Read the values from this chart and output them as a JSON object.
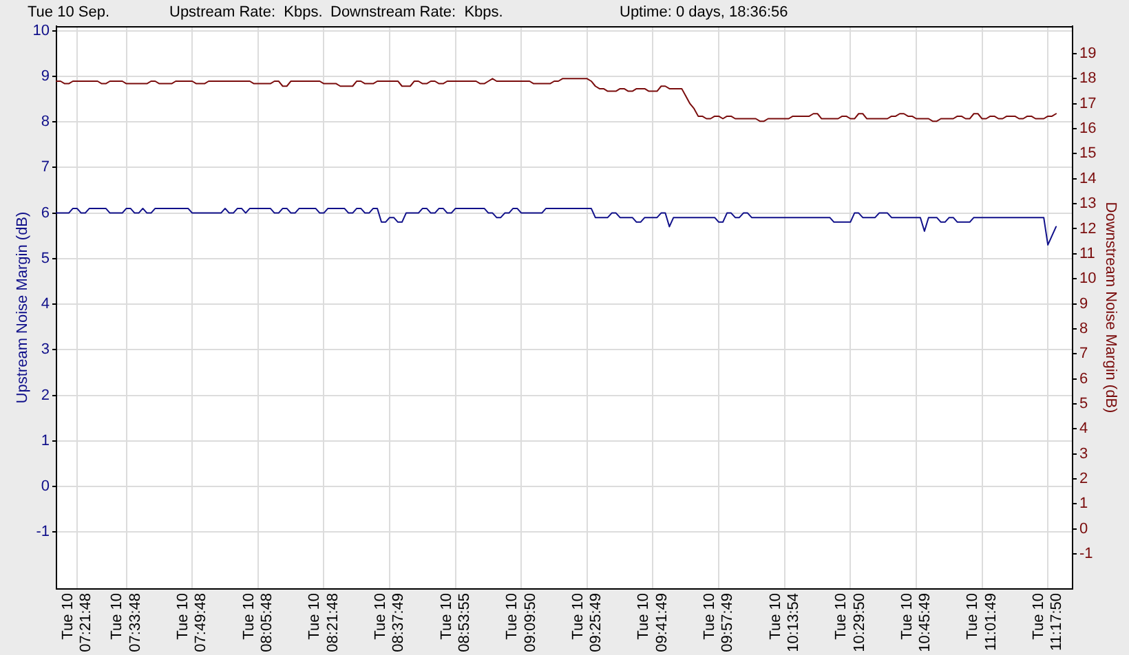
{
  "chart_data": {
    "type": "line",
    "title": "Tue 10 Sep.",
    "annotations": [
      "Upstream Rate:  Kbps.",
      "Downstream Rate:  Kbps.",
      "Uptime: 0 days, 18:36:56"
    ],
    "ylabel": "Upstream Noise Margin (dB)",
    "y2label": "Downstream Noise Margin (dB)",
    "categories": [
      null,
      null,
      null,
      null,
      null,
      "Tue 10\n07:21:48",
      null,
      null,
      null,
      null,
      null,
      null,
      null,
      null,
      null,
      null,
      null,
      "Tue 10\n07:33:48",
      null,
      null,
      null,
      null,
      null,
      null,
      null,
      null,
      null,
      null,
      null,
      null,
      null,
      null,
      null,
      "Tue 10\n07:49:48",
      null,
      null,
      null,
      null,
      null,
      null,
      null,
      null,
      null,
      null,
      null,
      null,
      null,
      null,
      null,
      "Tue 10\n08:05:48",
      null,
      null,
      null,
      null,
      null,
      null,
      null,
      null,
      null,
      null,
      null,
      null,
      null,
      null,
      null,
      "Tue 10\n08:21:48",
      null,
      null,
      null,
      null,
      null,
      null,
      null,
      null,
      null,
      null,
      null,
      null,
      null,
      null,
      null,
      "Tue 10\n08:37:49",
      null,
      null,
      null,
      null,
      null,
      null,
      null,
      null,
      null,
      null,
      null,
      null,
      null,
      null,
      null,
      "Tue 10\n08:53:55",
      null,
      null,
      null,
      null,
      null,
      null,
      null,
      null,
      null,
      null,
      null,
      null,
      null,
      null,
      null,
      "Tue 10\n09:09:50",
      null,
      null,
      null,
      null,
      null,
      null,
      null,
      null,
      null,
      null,
      null,
      null,
      null,
      null,
      null,
      "Tue 10\n09:25:49",
      null,
      null,
      null,
      null,
      null,
      null,
      null,
      null,
      null,
      null,
      null,
      null,
      null,
      null,
      null,
      "Tue 10\n09:41:49",
      null,
      null,
      null,
      null,
      null,
      null,
      null,
      null,
      null,
      null,
      null,
      null,
      null,
      null,
      null,
      "Tue 10\n09:57:49",
      null,
      null,
      null,
      null,
      null,
      null,
      null,
      null,
      null,
      null,
      null,
      null,
      null,
      null,
      null,
      "Tue 10\n10:13:54",
      null,
      null,
      null,
      null,
      null,
      null,
      null,
      null,
      null,
      null,
      null,
      null,
      null,
      null,
      null,
      "Tue 10\n10:29:50",
      null,
      null,
      null,
      null,
      null,
      null,
      null,
      null,
      null,
      null,
      null,
      null,
      null,
      null,
      null,
      "Tue 10\n10:45:49",
      null,
      null,
      null,
      null,
      null,
      null,
      null,
      null,
      null,
      null,
      null,
      null,
      null,
      null,
      null,
      "Tue 10\n11:01:49",
      null,
      null,
      null,
      null,
      null,
      null,
      null,
      null,
      null,
      null,
      null,
      null,
      null,
      null,
      null,
      "Tue 10\n11:17:50",
      null,
      null,
      null,
      null,
      null,
      null
    ],
    "ylim": [
      -2.25,
      10.1
    ],
    "yticks": [
      -1,
      0,
      1,
      2,
      3,
      4,
      5,
      6,
      7,
      8,
      9,
      10
    ],
    "y2lim": [
      -2.4,
      20.1
    ],
    "y2ticks": [
      -1,
      0,
      1,
      2,
      3,
      4,
      5,
      6,
      7,
      8,
      9,
      10,
      11,
      12,
      13,
      14,
      15,
      16,
      17,
      18,
      19
    ],
    "grid": true,
    "series": [
      {
        "color": "#10108a",
        "values": [
          6.0,
          6.0,
          6.0,
          6.0,
          6.1,
          6.1,
          6.0,
          6.0,
          6.1,
          6.1,
          6.1,
          6.1,
          6.1,
          6.0,
          6.0,
          6.0,
          6.0,
          6.1,
          6.1,
          6.0,
          6.0,
          6.1,
          6.0,
          6.0,
          6.1,
          6.1,
          6.1,
          6.1,
          6.1,
          6.1,
          6.1,
          6.1,
          6.1,
          6.0,
          6.0,
          6.0,
          6.0,
          6.0,
          6.0,
          6.0,
          6.0,
          6.1,
          6.0,
          6.0,
          6.1,
          6.1,
          6.0,
          6.1,
          6.1,
          6.1,
          6.1,
          6.1,
          6.1,
          6.0,
          6.0,
          6.1,
          6.1,
          6.0,
          6.0,
          6.1,
          6.1,
          6.1,
          6.1,
          6.1,
          6.0,
          6.0,
          6.1,
          6.1,
          6.1,
          6.1,
          6.1,
          6.0,
          6.0,
          6.1,
          6.1,
          6.0,
          6.0,
          6.1,
          6.1,
          5.8,
          5.8,
          5.9,
          5.9,
          5.8,
          5.8,
          6.0,
          6.0,
          6.0,
          6.0,
          6.1,
          6.1,
          6.0,
          6.0,
          6.1,
          6.1,
          6.0,
          6.0,
          6.1,
          6.1,
          6.1,
          6.1,
          6.1,
          6.1,
          6.1,
          6.1,
          6.0,
          6.0,
          5.9,
          5.9,
          6.0,
          6.0,
          6.1,
          6.1,
          6.0,
          6.0,
          6.0,
          6.0,
          6.0,
          6.0,
          6.1,
          6.1,
          6.1,
          6.1,
          6.1,
          6.1,
          6.1,
          6.1,
          6.1,
          6.1,
          6.1,
          6.1,
          5.9,
          5.9,
          5.9,
          5.9,
          6.0,
          6.0,
          5.9,
          5.9,
          5.9,
          5.9,
          5.8,
          5.8,
          5.9,
          5.9,
          5.9,
          5.9,
          6.0,
          6.0,
          5.7,
          5.9,
          5.9,
          5.9,
          5.9,
          5.9,
          5.9,
          5.9,
          5.9,
          5.9,
          5.9,
          5.9,
          5.8,
          5.8,
          6.0,
          6.0,
          5.9,
          5.9,
          6.0,
          6.0,
          5.9,
          5.9,
          5.9,
          5.9,
          5.9,
          5.9,
          5.9,
          5.9,
          5.9,
          5.9,
          5.9,
          5.9,
          5.9,
          5.9,
          5.9,
          5.9,
          5.9,
          5.9,
          5.9,
          5.9,
          5.8,
          5.8,
          5.8,
          5.8,
          5.8,
          6.0,
          6.0,
          5.9,
          5.9,
          5.9,
          5.9,
          6.0,
          6.0,
          6.0,
          5.9,
          5.9,
          5.9,
          5.9,
          5.9,
          5.9,
          5.9,
          5.9,
          5.6,
          5.9,
          5.9,
          5.9,
          5.8,
          5.8,
          5.9,
          5.9,
          5.8,
          5.8,
          5.8,
          5.8,
          5.9,
          5.9,
          5.9,
          5.9,
          5.9,
          5.9,
          5.9,
          5.9,
          5.9,
          5.9,
          5.9,
          5.9,
          5.9,
          5.9,
          5.9,
          5.9,
          5.9,
          5.9,
          5.3,
          5.5,
          5.7,
          null,
          null,
          null,
          null
        ]
      },
      {
        "color": "#7a0c0c",
        "axis": "y2",
        "values": [
          17.9,
          17.9,
          17.8,
          17.8,
          17.9,
          17.9,
          17.9,
          17.9,
          17.9,
          17.9,
          17.9,
          17.8,
          17.8,
          17.9,
          17.9,
          17.9,
          17.9,
          17.8,
          17.8,
          17.8,
          17.8,
          17.8,
          17.8,
          17.9,
          17.9,
          17.8,
          17.8,
          17.8,
          17.8,
          17.9,
          17.9,
          17.9,
          17.9,
          17.9,
          17.8,
          17.8,
          17.8,
          17.9,
          17.9,
          17.9,
          17.9,
          17.9,
          17.9,
          17.9,
          17.9,
          17.9,
          17.9,
          17.9,
          17.8,
          17.8,
          17.8,
          17.8,
          17.8,
          17.9,
          17.9,
          17.7,
          17.7,
          17.9,
          17.9,
          17.9,
          17.9,
          17.9,
          17.9,
          17.9,
          17.9,
          17.8,
          17.8,
          17.8,
          17.8,
          17.7,
          17.7,
          17.7,
          17.7,
          17.9,
          17.9,
          17.8,
          17.8,
          17.8,
          17.9,
          17.9,
          17.9,
          17.9,
          17.9,
          17.9,
          17.7,
          17.7,
          17.7,
          17.9,
          17.9,
          17.8,
          17.8,
          17.9,
          17.9,
          17.8,
          17.8,
          17.9,
          17.9,
          17.9,
          17.9,
          17.9,
          17.9,
          17.9,
          17.9,
          17.8,
          17.8,
          17.9,
          18.0,
          17.9,
          17.9,
          17.9,
          17.9,
          17.9,
          17.9,
          17.9,
          17.9,
          17.9,
          17.8,
          17.8,
          17.8,
          17.8,
          17.8,
          17.9,
          17.9,
          18.0,
          18.0,
          18.0,
          18.0,
          18.0,
          18.0,
          18.0,
          17.9,
          17.7,
          17.6,
          17.6,
          17.5,
          17.5,
          17.5,
          17.6,
          17.6,
          17.5,
          17.5,
          17.6,
          17.6,
          17.6,
          17.5,
          17.5,
          17.5,
          17.7,
          17.7,
          17.6,
          17.6,
          17.6,
          17.6,
          17.3,
          17.0,
          16.8,
          16.5,
          16.5,
          16.4,
          16.4,
          16.5,
          16.5,
          16.4,
          16.5,
          16.5,
          16.4,
          16.4,
          16.4,
          16.4,
          16.4,
          16.4,
          16.3,
          16.3,
          16.4,
          16.4,
          16.4,
          16.4,
          16.4,
          16.4,
          16.5,
          16.5,
          16.5,
          16.5,
          16.5,
          16.6,
          16.6,
          16.4,
          16.4,
          16.4,
          16.4,
          16.4,
          16.5,
          16.5,
          16.4,
          16.4,
          16.6,
          16.6,
          16.4,
          16.4,
          16.4,
          16.4,
          16.4,
          16.4,
          16.5,
          16.5,
          16.6,
          16.6,
          16.5,
          16.5,
          16.4,
          16.4,
          16.4,
          16.4,
          16.3,
          16.3,
          16.4,
          16.4,
          16.4,
          16.4,
          16.5,
          16.5,
          16.4,
          16.4,
          16.6,
          16.6,
          16.4,
          16.4,
          16.5,
          16.5,
          16.4,
          16.4,
          16.5,
          16.5,
          16.5,
          16.4,
          16.4,
          16.5,
          16.5,
          16.4,
          16.4,
          16.4,
          16.5,
          16.5,
          16.6,
          null,
          null,
          null,
          null
        ]
      }
    ]
  }
}
